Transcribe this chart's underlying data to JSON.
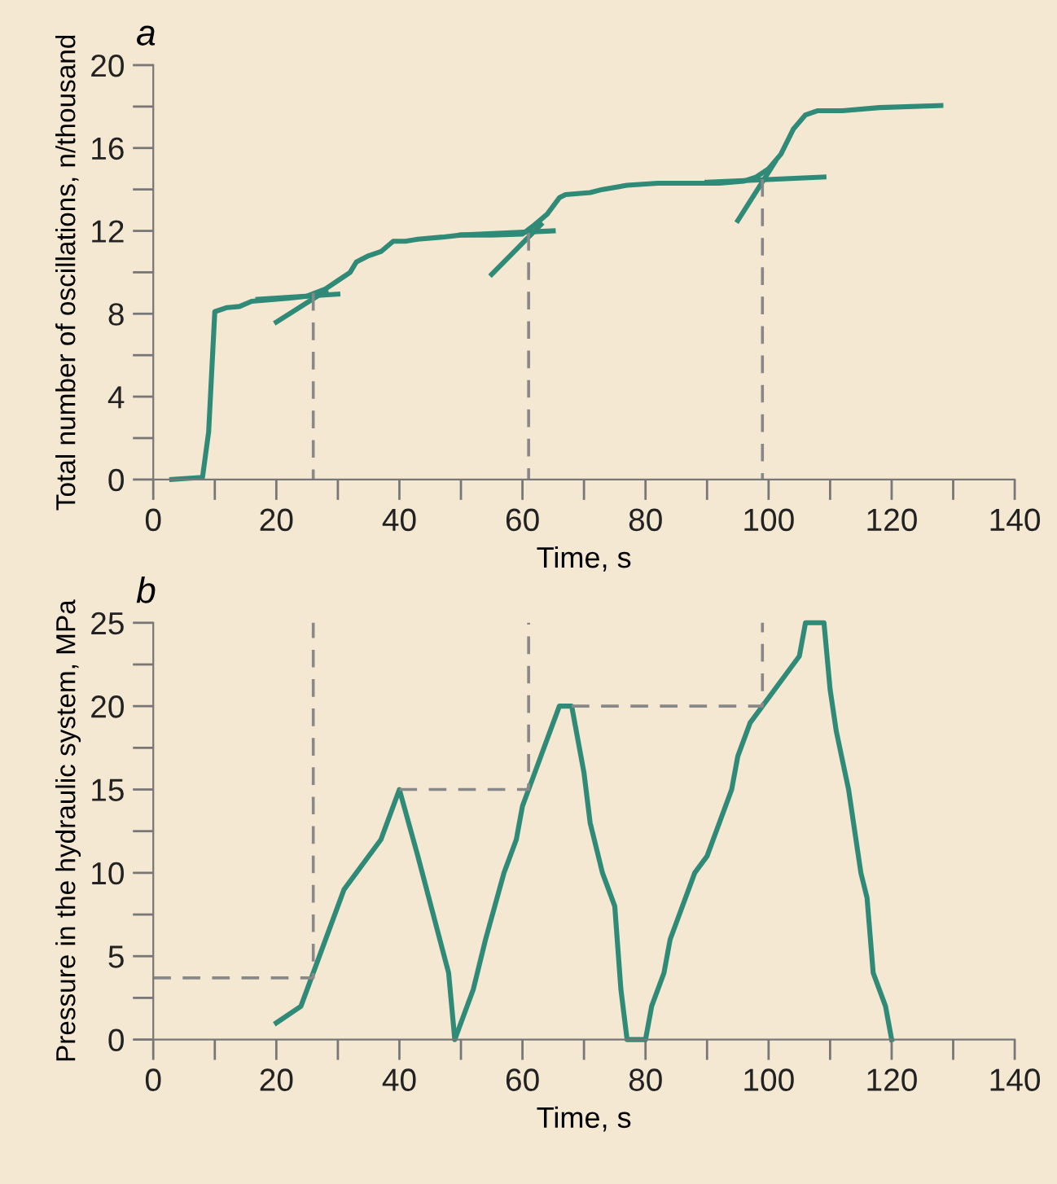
{
  "chart_data": [
    {
      "type": "line",
      "title": "a",
      "xlabel": "Time, s",
      "ylabel": "Total number of oscillations, n/thousand",
      "xlim": [
        0,
        140
      ],
      "ylim": [
        0,
        20
      ],
      "xticks": [
        0,
        {
          "value": 10,
          "label": null
        },
        20,
        {
          "value": 30,
          "label": null
        },
        40,
        {
          "value": 50,
          "label": null
        },
        60,
        {
          "value": 70,
          "label": null
        },
        80,
        {
          "value": 90,
          "label": null
        },
        100,
        {
          "value": 110,
          "label": null
        },
        120,
        {
          "value": 130,
          "label": null
        },
        140
      ],
      "yticks": [
        0,
        {
          "value": 2,
          "label": null
        },
        4,
        {
          "value": 6,
          "label": null
        },
        8,
        {
          "value": 10,
          "label": null
        },
        12,
        {
          "value": 14,
          "label": null
        },
        16,
        {
          "value": 18,
          "label": null
        },
        20
      ],
      "grid": false,
      "series": [
        {
          "color": "#2f8a78",
          "x": [
            3,
            8,
            9,
            10,
            12,
            14,
            16,
            18,
            22,
            25,
            28,
            30,
            32,
            33,
            35,
            37,
            39,
            41,
            43,
            47,
            50,
            55,
            60,
            62,
            64,
            66,
            67,
            71,
            73,
            77,
            82,
            92,
            96,
            98,
            100,
            102,
            104,
            106,
            108,
            112,
            118,
            128
          ],
          "values": [
            0,
            0.1,
            2.3,
            8.1,
            8.3,
            8.35,
            8.6,
            8.65,
            8.75,
            8.85,
            9.2,
            9.6,
            10.0,
            10.5,
            10.8,
            11.0,
            11.5,
            11.5,
            11.6,
            11.7,
            11.8,
            11.8,
            11.85,
            12.3,
            12.8,
            13.6,
            13.75,
            13.85,
            14.0,
            14.2,
            14.3,
            14.3,
            14.4,
            14.6,
            15.0,
            15.7,
            16.9,
            17.6,
            17.8,
            17.8,
            17.95,
            18.05
          ]
        },
        {
          "color": "#2f8a78",
          "x": [
            20,
            28
          ],
          "values": [
            7.6,
            9.1
          ]
        },
        {
          "color": "#2f8a78",
          "x": [
            17,
            30
          ],
          "values": [
            8.7,
            8.95
          ]
        },
        {
          "color": "#2f8a78",
          "x": [
            55,
            63
          ],
          "values": [
            9.9,
            12.3
          ]
        },
        {
          "color": "#2f8a78",
          "x": [
            50,
            65
          ],
          "values": [
            11.8,
            12.0
          ]
        },
        {
          "color": "#2f8a78",
          "x": [
            95,
            101
          ],
          "values": [
            12.5,
            15.3
          ]
        },
        {
          "color": "#2f8a78",
          "x": [
            90,
            109
          ],
          "values": [
            14.35,
            14.6
          ]
        },
        {
          "color": "#888888",
          "line_style": "dashed",
          "x": [
            26,
            26
          ],
          "values": [
            9.0,
            0
          ]
        },
        {
          "color": "#888888",
          "line_style": "dashed",
          "x": [
            61,
            61
          ],
          "values": [
            11.9,
            0
          ]
        },
        {
          "color": "#888888",
          "line_style": "dashed",
          "x": [
            99,
            99
          ],
          "values": [
            14.5,
            0
          ]
        }
      ]
    },
    {
      "type": "line",
      "title": "b",
      "xlabel": "Time, s",
      "ylabel": "Pressure in the hydraulic system, MPa",
      "xlim": [
        0,
        140
      ],
      "ylim": [
        0,
        25
      ],
      "xticks": [
        0,
        {
          "value": 10,
          "label": null
        },
        20,
        {
          "value": 30,
          "label": null
        },
        40,
        {
          "value": 50,
          "label": null
        },
        60,
        {
          "value": 70,
          "label": null
        },
        80,
        {
          "value": 90,
          "label": null
        },
        100,
        {
          "value": 110,
          "label": null
        },
        120,
        {
          "value": 130,
          "label": null
        },
        140
      ],
      "yticks": [
        0,
        {
          "value": 2.5,
          "label": null
        },
        5,
        {
          "value": 7.5,
          "label": null
        },
        10,
        {
          "value": 12.5,
          "label": null
        },
        15,
        {
          "value": 17.5,
          "label": null
        },
        20,
        {
          "value": 22.5,
          "label": null
        },
        25
      ],
      "grid": false,
      "series": [
        {
          "color": "#2f8a78",
          "x": [
            20,
            24,
            31,
            37,
            40,
            43,
            48,
            49,
            52,
            54,
            57,
            59,
            60,
            62,
            66,
            68,
            70,
            71,
            73,
            75,
            76,
            77,
            80,
            81,
            83,
            84,
            88,
            90,
            94,
            95,
            97,
            105,
            106,
            109,
            110,
            111,
            113,
            115,
            116,
            117,
            119,
            120
          ],
          "values": [
            1,
            2,
            9,
            12,
            15,
            11,
            4,
            0,
            3,
            6,
            10,
            12,
            14,
            16,
            20,
            20,
            16,
            13,
            10,
            8,
            3,
            0,
            0,
            2,
            4,
            6,
            10,
            11,
            15,
            17,
            19,
            23,
            25,
            25,
            21,
            18.5,
            15,
            10,
            8.5,
            4,
            2,
            0
          ]
        },
        {
          "color": "#888888",
          "line_style": "dashed",
          "x": [
            0,
            26,
            26
          ],
          "values": [
            3.7,
            3.7,
            25
          ]
        },
        {
          "color": "#888888",
          "line_style": "dashed",
          "x": [
            40,
            61,
            61
          ],
          "values": [
            15,
            15,
            25
          ]
        },
        {
          "color": "#888888",
          "line_style": "dashed",
          "x": [
            68,
            99,
            99
          ],
          "values": [
            20,
            20,
            25
          ]
        }
      ]
    }
  ]
}
